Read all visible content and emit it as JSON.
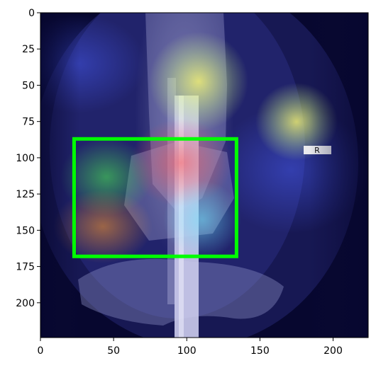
{
  "figure": {
    "image_description_label": "",
    "axes": {
      "x_ticks": [
        "0",
        "50",
        "100",
        "150",
        "200"
      ],
      "y_ticks": [
        "0",
        "25",
        "50",
        "75",
        "100",
        "125",
        "150",
        "175",
        "200"
      ],
      "x_range": [
        0,
        224
      ],
      "y_range": [
        224,
        0
      ]
    },
    "bounding_box": {
      "label": "",
      "color": "#00ff00",
      "x_min": 23,
      "y_min": 87,
      "x_max": 134,
      "y_max": 168
    },
    "marker_text": "R",
    "colors": {
      "background_dark": "#06062e",
      "bone": "#d9d9ef",
      "box": "#00ff00"
    }
  }
}
